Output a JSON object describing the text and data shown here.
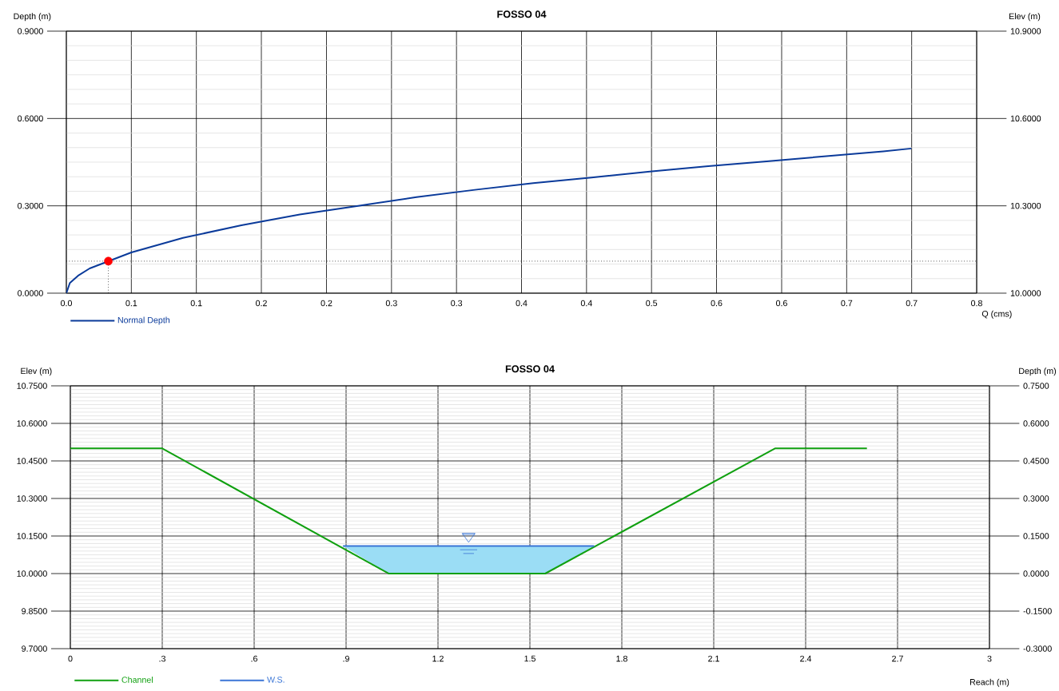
{
  "chart_data": [
    {
      "type": "line",
      "title": "FOSSO 04",
      "xlabel": "Q (cms)",
      "ylabel": "Depth (m)",
      "y2label": "Elev (m)",
      "xlim": [
        0,
        0.78
      ],
      "xticks": [
        {
          "value": 0,
          "label": "0.0"
        },
        {
          "value": 0.0557,
          "label": "0.1"
        },
        {
          "value": 0.1114,
          "label": "0.1"
        },
        {
          "value": 0.1671,
          "label": "0.2"
        },
        {
          "value": 0.2229,
          "label": "0.2"
        },
        {
          "value": 0.2786,
          "label": "0.3"
        },
        {
          "value": 0.3343,
          "label": "0.3"
        },
        {
          "value": 0.39,
          "label": "0.4"
        },
        {
          "value": 0.4457,
          "label": "0.4"
        },
        {
          "value": 0.5014,
          "label": "0.5"
        },
        {
          "value": 0.5571,
          "label": "0.6"
        },
        {
          "value": 0.6129,
          "label": "0.6"
        },
        {
          "value": 0.6686,
          "label": "0.7"
        },
        {
          "value": 0.7243,
          "label": "0.7"
        },
        {
          "value": 0.78,
          "label": "0.8"
        }
      ],
      "ylim": [
        0,
        0.9
      ],
      "yticks": [
        {
          "value": 0,
          "label": "0.0000"
        },
        {
          "value": 0.3,
          "label": "0.3000"
        },
        {
          "value": 0.6,
          "label": "0.6000"
        },
        {
          "value": 0.9,
          "label": "0.9000"
        }
      ],
      "y2lim": [
        10,
        10.9
      ],
      "y2ticks": [
        {
          "value": 10,
          "label": "10.0000"
        },
        {
          "value": 10.3,
          "label": "10.3000"
        },
        {
          "value": 10.6,
          "label": "10.6000"
        },
        {
          "value": 10.9,
          "label": "10.9000"
        }
      ],
      "grid": true,
      "legend": "bottom",
      "series": [
        {
          "name": "Normal Depth",
          "color": "#0a3a9a",
          "x": [
            0,
            0.003,
            0.01,
            0.02,
            0.0557,
            0.1,
            0.15,
            0.2,
            0.25,
            0.3,
            0.35,
            0.4,
            0.45,
            0.5,
            0.55,
            0.6,
            0.65,
            0.7,
            0.724
          ],
          "values": [
            0,
            0.035,
            0.06,
            0.085,
            0.14,
            0.19,
            0.233,
            0.27,
            0.3,
            0.33,
            0.355,
            0.378,
            0.397,
            0.418,
            0.436,
            0.453,
            0.47,
            0.487,
            0.497
          ]
        },
        {
          "type": "scatter",
          "color": "#ff0000",
          "x": [
            0.036
          ],
          "values": [
            0.11
          ]
        }
      ],
      "ref_lines": [
        {
          "axis": "y",
          "value": 0.11,
          "color": "#000000",
          "line_style": "dotted"
        },
        {
          "axis": "x",
          "value": 0.036,
          "color": "#000000",
          "line_style": "dotted"
        }
      ]
    },
    {
      "type": "line",
      "title": "FOSSO 04",
      "xlabel": "Reach (m)",
      "ylabel": "Elev (m)",
      "y2label": "Depth (m)",
      "xlim": [
        0,
        3
      ],
      "xticks": [
        0,
        {
          "value": 0.3,
          "label": ".3"
        },
        {
          "value": 0.6,
          "label": ".6"
        },
        {
          "value": 0.9,
          "label": ".9"
        },
        1.2,
        1.5,
        1.8,
        2.1,
        2.4,
        2.7,
        3
      ],
      "ylim": [
        9.7,
        10.75
      ],
      "yticks": [
        {
          "value": 9.7,
          "label": "9.7000"
        },
        {
          "value": 9.85,
          "label": "9.8500"
        },
        {
          "value": 10,
          "label": "10.0000"
        },
        {
          "value": 10.15,
          "label": "10.1500"
        },
        {
          "value": 10.3,
          "label": "10.3000"
        },
        {
          "value": 10.45,
          "label": "10.4500"
        },
        {
          "value": 10.6,
          "label": "10.6000"
        },
        {
          "value": 10.75,
          "label": "10.7500"
        }
      ],
      "y2lim": [
        -0.3,
        0.75
      ],
      "y2ticks": [
        {
          "value": -0.3,
          "label": "-0.3000"
        },
        {
          "value": -0.15,
          "label": "-0.1500"
        },
        {
          "value": 0,
          "label": "0.0000"
        },
        {
          "value": 0.15,
          "label": "0.1500"
        },
        {
          "value": 0.3,
          "label": "0.3000"
        },
        {
          "value": 0.45,
          "label": "0.4500"
        },
        {
          "value": 0.6,
          "label": "0.6000"
        },
        {
          "value": 0.75,
          "label": "0.7500"
        }
      ],
      "grid": true,
      "legend": "bottom",
      "series": [
        {
          "name": "Channel",
          "color": "#10a010",
          "x": [
            0,
            0.3,
            1.04,
            1.55,
            2.3,
            2.6
          ],
          "values": [
            10.5,
            10.5,
            10,
            10,
            10.5,
            10.5
          ]
        },
        {
          "name": "W.S.",
          "color": "#3a75d6",
          "x": [
            0.89,
            1.04,
            1.55,
            1.71
          ],
          "values": [
            10.11,
            10.11,
            10.11,
            10.11
          ],
          "lower": [
            10.11,
            10,
            10,
            10.11
          ],
          "upper": [
            10.11,
            10.11,
            10.11,
            10.11
          ]
        }
      ]
    }
  ]
}
